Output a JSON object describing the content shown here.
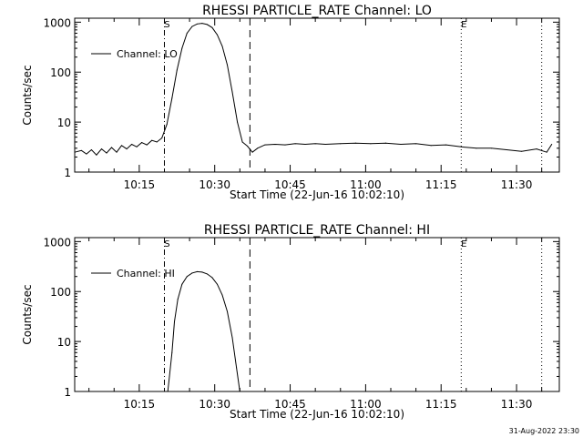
{
  "footer_date": "31-Aug-2022 23:30",
  "chart_data": [
    {
      "type": "line",
      "title": "RHESSI PARTICLE_RATE Channel: LO",
      "xlabel": "Start Time (22-Jun-16 10:02:10)",
      "ylabel": "Counts/sec",
      "y_scale": "log",
      "ylim": [
        1,
        1200
      ],
      "xlim": [
        "10:02:10",
        "11:38:30"
      ],
      "x_ticks": [
        "10:15",
        "10:30",
        "10:45",
        "11:00",
        "11:15",
        "11:30"
      ],
      "y_ticks": [
        "1",
        "10",
        "100",
        "1000"
      ],
      "legend": {
        "entries": [
          "Channel: LO"
        ],
        "placement": "top-left"
      },
      "markers": [
        {
          "label": "S",
          "time": "10:20:00",
          "style": "dash-dot"
        },
        {
          "label": "",
          "time": "10:37:00",
          "style": "dashed"
        },
        {
          "label": "E",
          "time": "11:19:00",
          "style": "dotted"
        },
        {
          "label": "",
          "time": "11:35:00",
          "style": "dotted"
        }
      ],
      "series": [
        {
          "name": "Channel: LO",
          "points": [
            [
              "10:02:10",
              2.5
            ],
            [
              "10:03:30",
              2.7
            ],
            [
              "10:04:30",
              2.3
            ],
            [
              "10:05:30",
              2.8
            ],
            [
              "10:06:30",
              2.2
            ],
            [
              "10:07:30",
              2.9
            ],
            [
              "10:08:30",
              2.4
            ],
            [
              "10:09:30",
              3.1
            ],
            [
              "10:10:30",
              2.5
            ],
            [
              "10:11:30",
              3.4
            ],
            [
              "10:12:30",
              2.9
            ],
            [
              "10:13:30",
              3.6
            ],
            [
              "10:14:30",
              3.2
            ],
            [
              "10:15:30",
              3.9
            ],
            [
              "10:16:30",
              3.5
            ],
            [
              "10:17:30",
              4.3
            ],
            [
              "10:18:30",
              4.0
            ],
            [
              "10:19:30",
              4.8
            ],
            [
              "10:20:30",
              9
            ],
            [
              "10:21:30",
              30
            ],
            [
              "10:22:30",
              110
            ],
            [
              "10:23:30",
              300
            ],
            [
              "10:24:30",
              600
            ],
            [
              "10:25:30",
              820
            ],
            [
              "10:26:30",
              920
            ],
            [
              "10:27:30",
              950
            ],
            [
              "10:28:30",
              900
            ],
            [
              "10:29:30",
              780
            ],
            [
              "10:30:30",
              560
            ],
            [
              "10:31:30",
              330
            ],
            [
              "10:32:30",
              140
            ],
            [
              "10:33:30",
              40
            ],
            [
              "10:34:30",
              10
            ],
            [
              "10:35:30",
              4.0
            ],
            [
              "10:36:30",
              3.3
            ],
            [
              "10:37:30",
              2.5
            ],
            [
              "10:38:30",
              3.0
            ],
            [
              "10:40:00",
              3.5
            ],
            [
              "10:42:00",
              3.6
            ],
            [
              "10:44:00",
              3.5
            ],
            [
              "10:46:00",
              3.7
            ],
            [
              "10:48:00",
              3.6
            ],
            [
              "10:50:00",
              3.7
            ],
            [
              "10:52:00",
              3.6
            ],
            [
              "10:55:00",
              3.7
            ],
            [
              "10:58:00",
              3.8
            ],
            [
              "11:01:00",
              3.7
            ],
            [
              "11:04:00",
              3.8
            ],
            [
              "11:07:00",
              3.6
            ],
            [
              "11:10:00",
              3.7
            ],
            [
              "11:13:00",
              3.4
            ],
            [
              "11:16:00",
              3.5
            ],
            [
              "11:19:00",
              3.2
            ],
            [
              "11:22:00",
              3.0
            ],
            [
              "11:25:00",
              3.0
            ],
            [
              "11:28:00",
              2.8
            ],
            [
              "11:31:00",
              2.6
            ],
            [
              "11:34:00",
              2.9
            ],
            [
              "11:36:00",
              2.5
            ],
            [
              "11:37:00",
              3.6
            ]
          ]
        }
      ]
    },
    {
      "type": "line",
      "title": "RHESSI PARTICLE_RATE Channel: HI",
      "xlabel": "Start Time (22-Jun-16 10:02:10)",
      "ylabel": "Counts/sec",
      "y_scale": "log",
      "ylim": [
        1,
        1200
      ],
      "xlim": [
        "10:02:10",
        "11:38:30"
      ],
      "x_ticks": [
        "10:15",
        "10:30",
        "10:45",
        "11:00",
        "11:15",
        "11:30"
      ],
      "y_ticks": [
        "1",
        "10",
        "100",
        "1000"
      ],
      "legend": {
        "entries": [
          "Channel: HI"
        ],
        "placement": "top-left"
      },
      "markers": [
        {
          "label": "S",
          "time": "10:20:00",
          "style": "dash-dot"
        },
        {
          "label": "",
          "time": "10:37:00",
          "style": "dashed"
        },
        {
          "label": "E",
          "time": "11:19:00",
          "style": "dotted"
        },
        {
          "label": "",
          "time": "11:35:00",
          "style": "dotted"
        }
      ],
      "series": [
        {
          "name": "Channel: HI",
          "points": [
            [
              "10:20:40",
              1.0
            ],
            [
              "10:21:00",
              2.0
            ],
            [
              "10:21:30",
              6
            ],
            [
              "10:22:00",
              25
            ],
            [
              "10:22:40",
              70
            ],
            [
              "10:23:30",
              140
            ],
            [
              "10:24:30",
              200
            ],
            [
              "10:25:30",
              235
            ],
            [
              "10:26:30",
              250
            ],
            [
              "10:27:30",
              245
            ],
            [
              "10:28:30",
              225
            ],
            [
              "10:29:30",
              190
            ],
            [
              "10:30:30",
              140
            ],
            [
              "10:31:30",
              85
            ],
            [
              "10:32:30",
              40
            ],
            [
              "10:33:30",
              12
            ],
            [
              "10:34:20",
              3
            ],
            [
              "10:35:00",
              1.0
            ]
          ]
        }
      ]
    }
  ]
}
